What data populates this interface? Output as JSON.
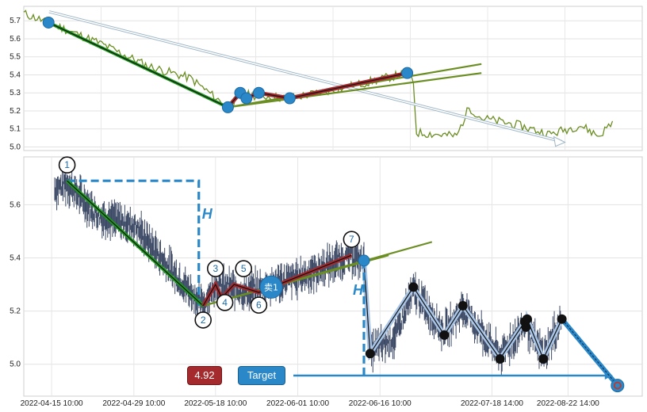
{
  "chart_data": [
    {
      "type": "line",
      "panel": "overview",
      "ylim": [
        4.98,
        5.78
      ],
      "yticks": [
        "5.0",
        "5.1",
        "5.2",
        "5.3",
        "5.4",
        "5.5",
        "5.6",
        "5.7"
      ],
      "grid": true,
      "series_color": "#6b8e23",
      "pattern_points": [
        {
          "x": 0.04,
          "y": 5.69
        },
        {
          "x": 0.33,
          "y": 5.22
        },
        {
          "x": 0.35,
          "y": 5.3
        },
        {
          "x": 0.36,
          "y": 5.27
        },
        {
          "x": 0.38,
          "y": 5.3
        },
        {
          "x": 0.43,
          "y": 5.27
        },
        {
          "x": 0.62,
          "y": 5.41
        }
      ],
      "projection_arrow": {
        "from": [
          0.0,
          5.75
        ],
        "to": [
          0.87,
          5.03
        ]
      }
    },
    {
      "type": "line",
      "panel": "detail",
      "ylim": [
        4.88,
        5.78
      ],
      "yticks": [
        "5.0",
        "5.2",
        "5.4",
        "5.6"
      ],
      "xticks": [
        "2022-04-15 10:00",
        "2022-04-29 10:00",
        "2022-05-18 10:00",
        "2022-06-01 10:00",
        "2022-06-16 10:00",
        "2022-07-18 14:00",
        "2022-08-22 14:00"
      ],
      "grid": true,
      "pattern_labels": [
        "1",
        "2",
        "3",
        "4",
        "5",
        "6",
        "7"
      ],
      "pattern_points": [
        {
          "label": "1",
          "x": 0.07,
          "y": 5.69
        },
        {
          "label": "2",
          "x": 0.29,
          "y": 5.22
        },
        {
          "label": "3",
          "x": 0.31,
          "y": 5.3
        },
        {
          "label": "4",
          "x": 0.32,
          "y": 5.25
        },
        {
          "label": "5",
          "x": 0.34,
          "y": 5.3
        },
        {
          "label": "6",
          "x": 0.38,
          "y": 5.27
        },
        {
          "label": "7",
          "x": 0.53,
          "y": 5.41
        }
      ],
      "height_label": "H",
      "sell_label": "卖1",
      "sell_point": {
        "x": 0.4,
        "y": 5.29
      },
      "after_path": [
        {
          "x": 0.55,
          "y": 5.39
        },
        {
          "x": 0.56,
          "y": 5.04
        },
        {
          "x": 0.63,
          "y": 5.29
        },
        {
          "x": 0.68,
          "y": 5.11
        },
        {
          "x": 0.71,
          "y": 5.22
        },
        {
          "x": 0.77,
          "y": 5.02
        },
        {
          "x": 0.81,
          "y": 5.16
        },
        {
          "x": 0.812,
          "y": 5.14
        },
        {
          "x": 0.814,
          "y": 5.17
        },
        {
          "x": 0.84,
          "y": 5.02
        },
        {
          "x": 0.87,
          "y": 5.17
        }
      ],
      "target_point": {
        "x": 0.96,
        "y": 4.92
      },
      "target_price": "4.92",
      "target_label": "Target"
    }
  ],
  "colors": {
    "price_line": "#6b8e23",
    "downtrend": "#1a9b1a",
    "pattern_fill": "#a42a2e",
    "wedge": "#6b8e23",
    "marker": "#2a88c8",
    "dashed": "#2a88c8",
    "candle": "#3d4a66",
    "after_line": "#a9c6e8"
  }
}
